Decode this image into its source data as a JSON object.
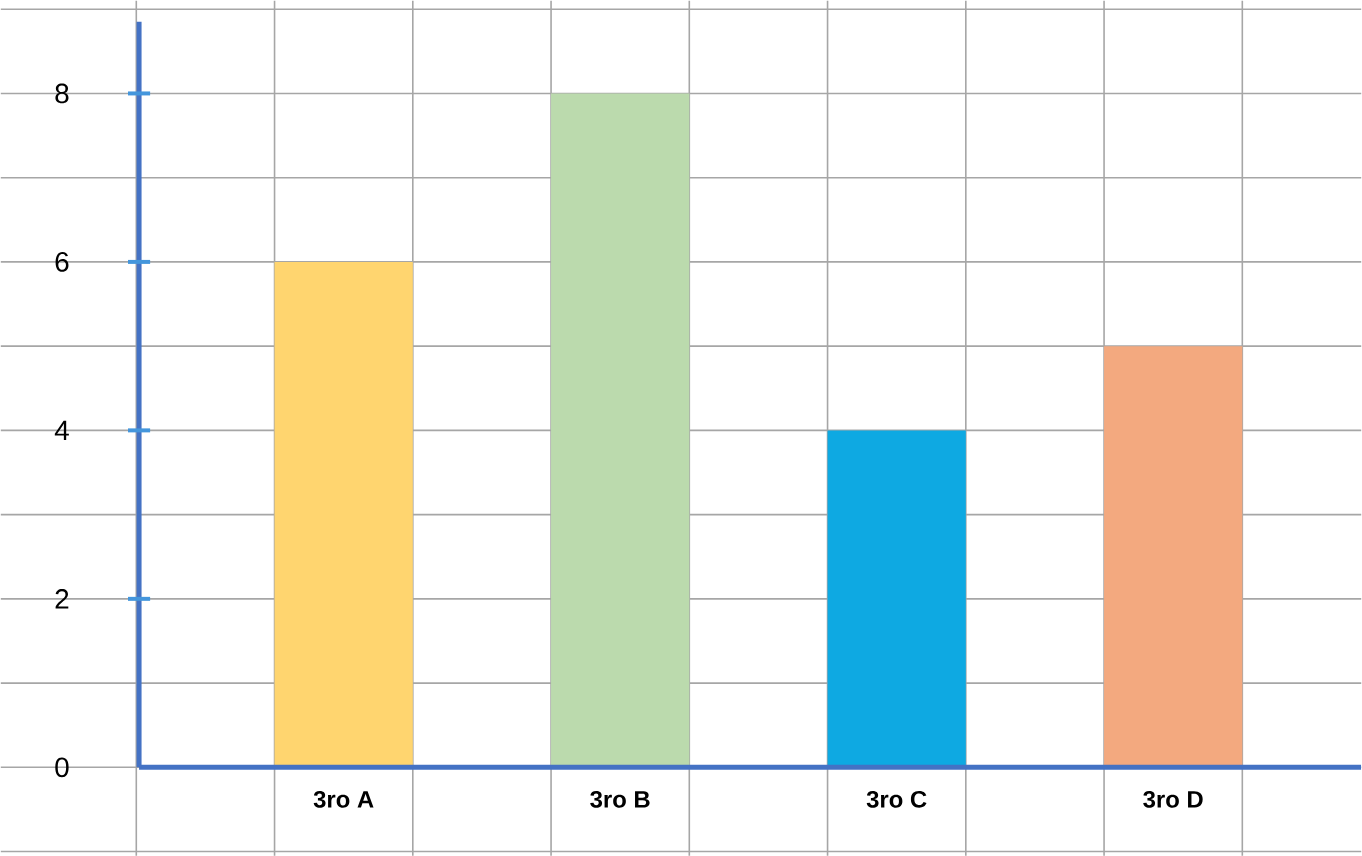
{
  "chart_data": {
    "type": "bar",
    "categories": [
      "3ro  A",
      "3ro  B",
      "3ro  C",
      "3ro  D"
    ],
    "values": [
      6,
      8,
      4,
      5
    ],
    "colors": [
      "#ffd56f",
      "#bbdaad",
      "#0ea9e2",
      "#f3a97f"
    ],
    "ylim": [
      -1.05,
      9.1
    ],
    "yticks": [
      0,
      2,
      4,
      6,
      8
    ],
    "grid": true
  }
}
